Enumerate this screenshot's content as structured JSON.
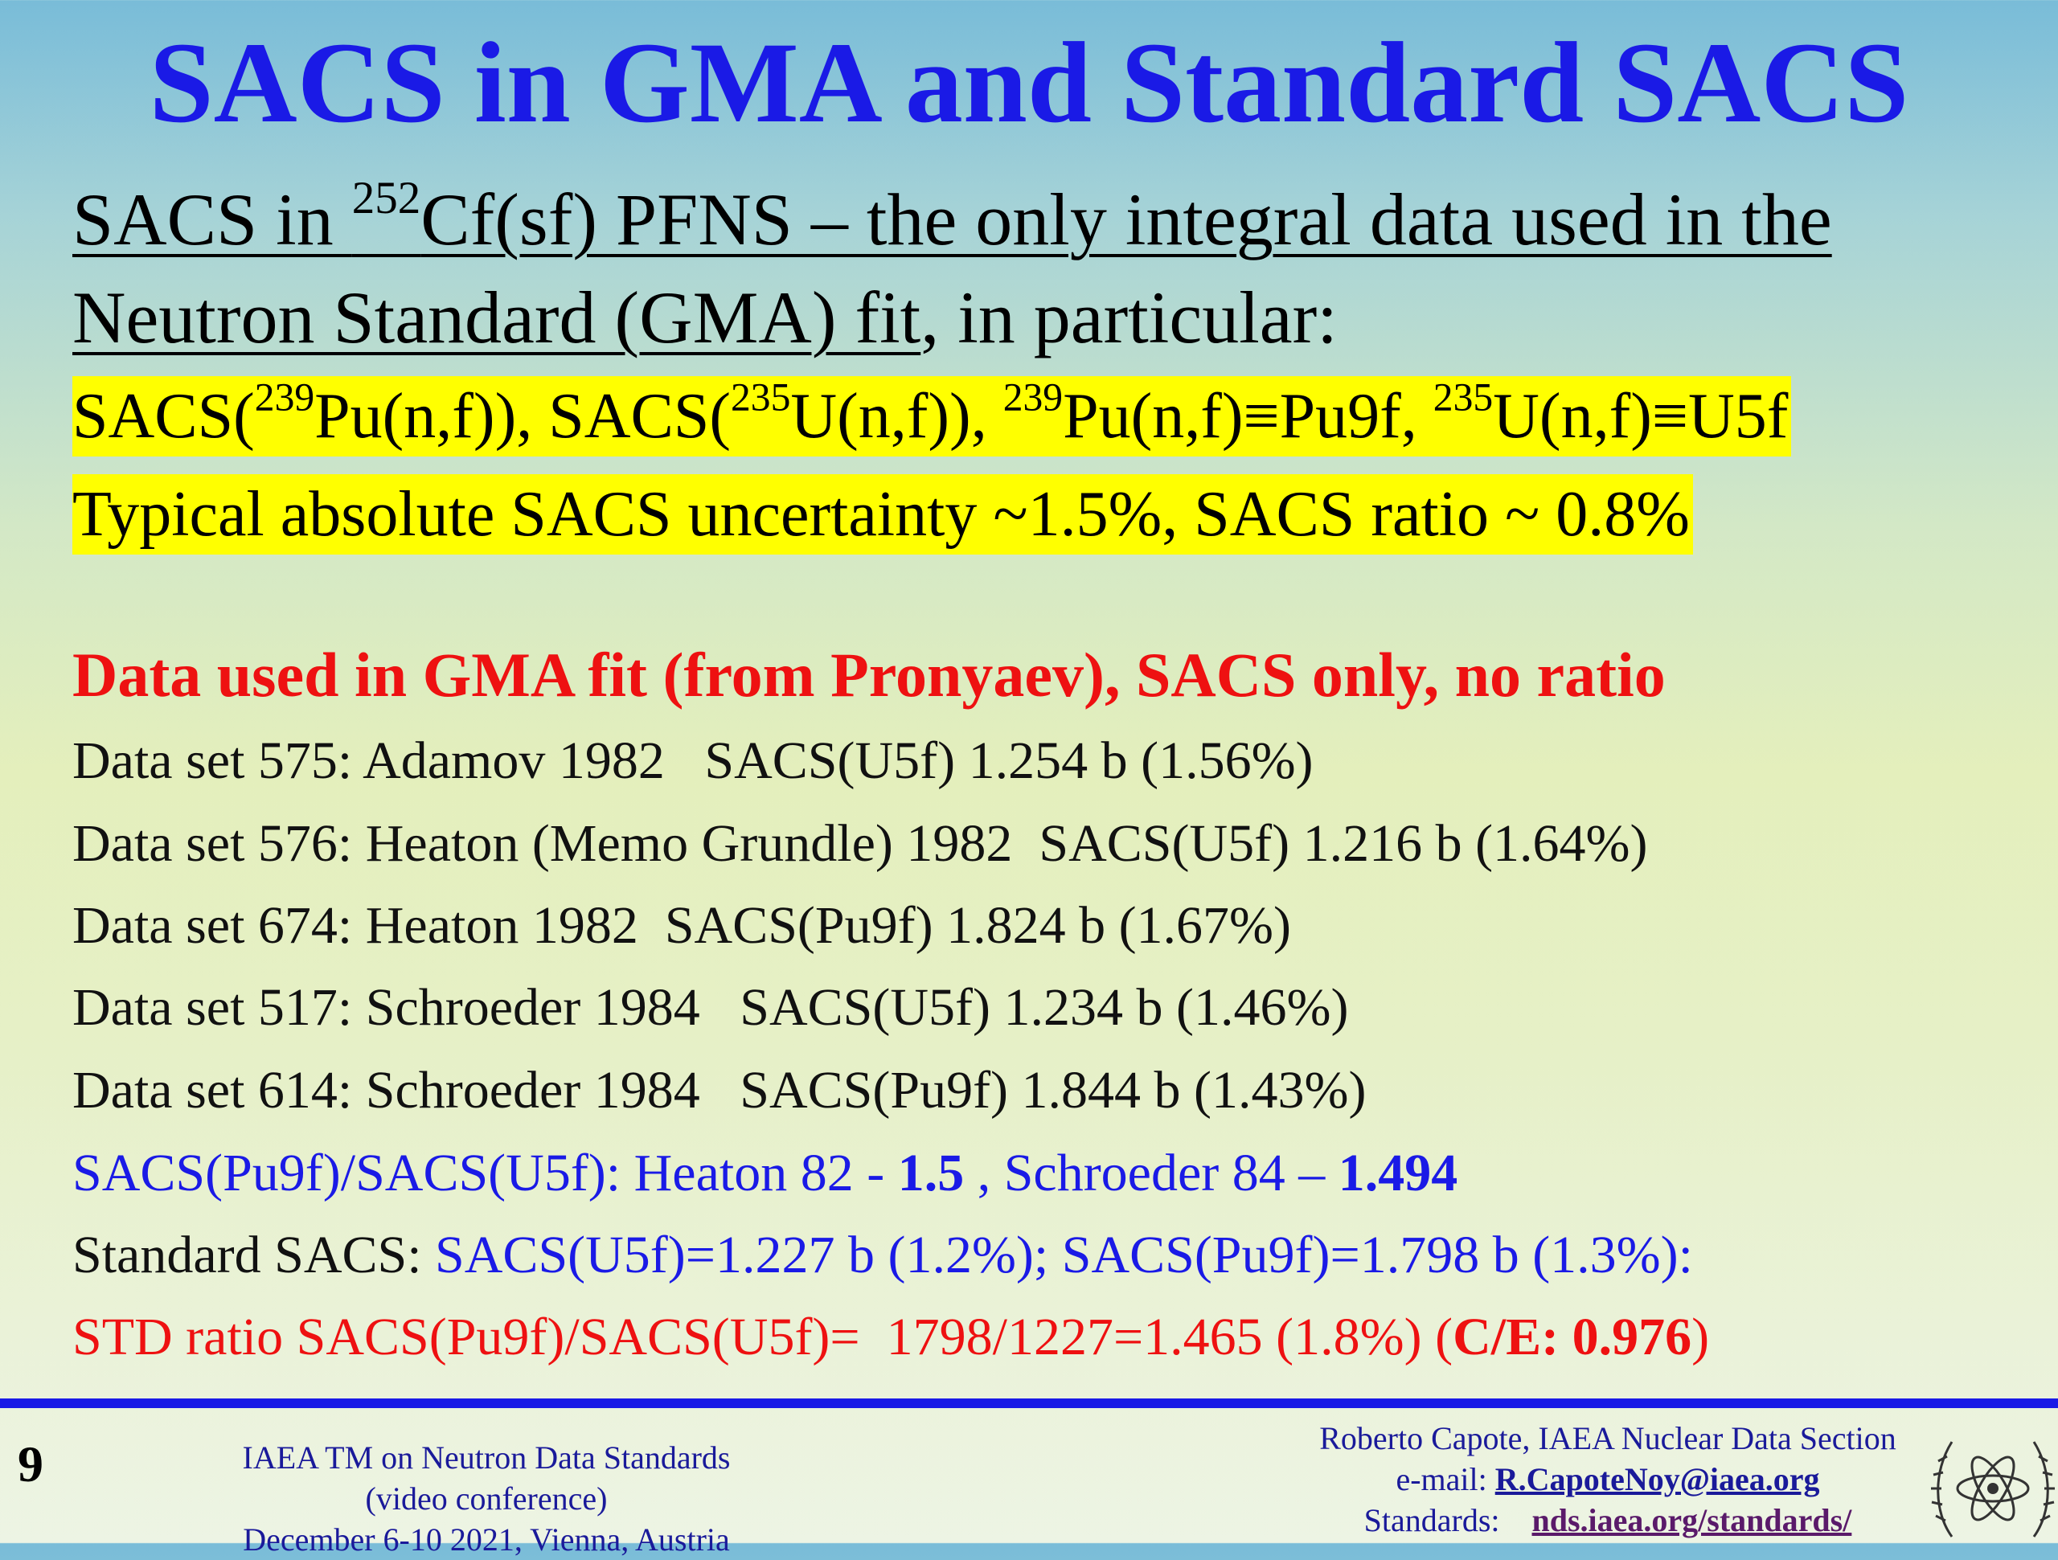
{
  "title": "SACS in GMA and Standard SACS",
  "intro": {
    "part1": "SACS in ",
    "sup_252": "252",
    "part2": "Cf(sf) PFNS – the only integral data used in the Neutron Standard (GMA) fit",
    "part3": ", in particular:"
  },
  "highlight1": {
    "a": "SACS(",
    "sup1": "239",
    "b": "Pu(n,f)),  SACS(",
    "sup2": "235",
    "c": "U(n,f)), ",
    "sup3": "239",
    "d": "Pu(n,f)≡Pu9f, ",
    "sup4": "235",
    "e": "U(n,f)≡U5f"
  },
  "highlight2": "Typical absolute SACS uncertainty ~1.5%, SACS ratio ~ 0.8%",
  "red_heading": "Data used in GMA fit (from Pronyaev), SACS only, no ratio",
  "datasets": [
    "Data set 575: Adamov 1982   SACS(U5f) 1.254 b (1.56%)",
    "Data set 576: Heaton (Memo Grundle) 1982  SACS(U5f) 1.216 b (1.64%)",
    "Data set 674: Heaton 1982  SACS(Pu9f) 1.824 b (1.67%)",
    "Data set 517: Schroeder 1984   SACS(U5f) 1.234 b (1.46%)",
    "Data set 614: Schroeder 1984   SACS(Pu9f) 1.844 b (1.43%)"
  ],
  "ratio_line": {
    "a": "SACS(Pu9f)/SACS(U5f): Heaton 82 - ",
    "b": "1.5",
    "c": " , Schroeder 84 – ",
    "d": "1.494"
  },
  "standard_line": {
    "a": "Standard SACS: ",
    "b": "SACS(U5f)=1.227 b (1.2%); SACS(Pu9f)=1.798 b (1.3%):"
  },
  "std_ratio_line": {
    "a": "STD ratio SACS(Pu9f)/SACS(U5f)=  1798/1227=1.465 (1.8%) (",
    "b": "C/E: 0.976",
    "c": ")"
  },
  "footer": {
    "page_number": "9",
    "left": [
      "IAEA TM on Neutron Data Standards",
      "(video conference)",
      "December 6-10 2021, Vienna, Austria"
    ],
    "right_line1": "Roberto Capote, IAEA Nuclear Data Section",
    "email_label": "e-mail: ",
    "email": "R.CapoteNoy@iaea.org",
    "standards_label": "Standards:    ",
    "standards_link": "nds.iaea.org/standards/"
  },
  "colors": {
    "title_blue": "#1a1ae6",
    "highlight_yellow": "#ffff00",
    "red": "#ee1111",
    "footer_bar": "#1a1ae6"
  },
  "logo_icon": "iaea-emblem-icon"
}
